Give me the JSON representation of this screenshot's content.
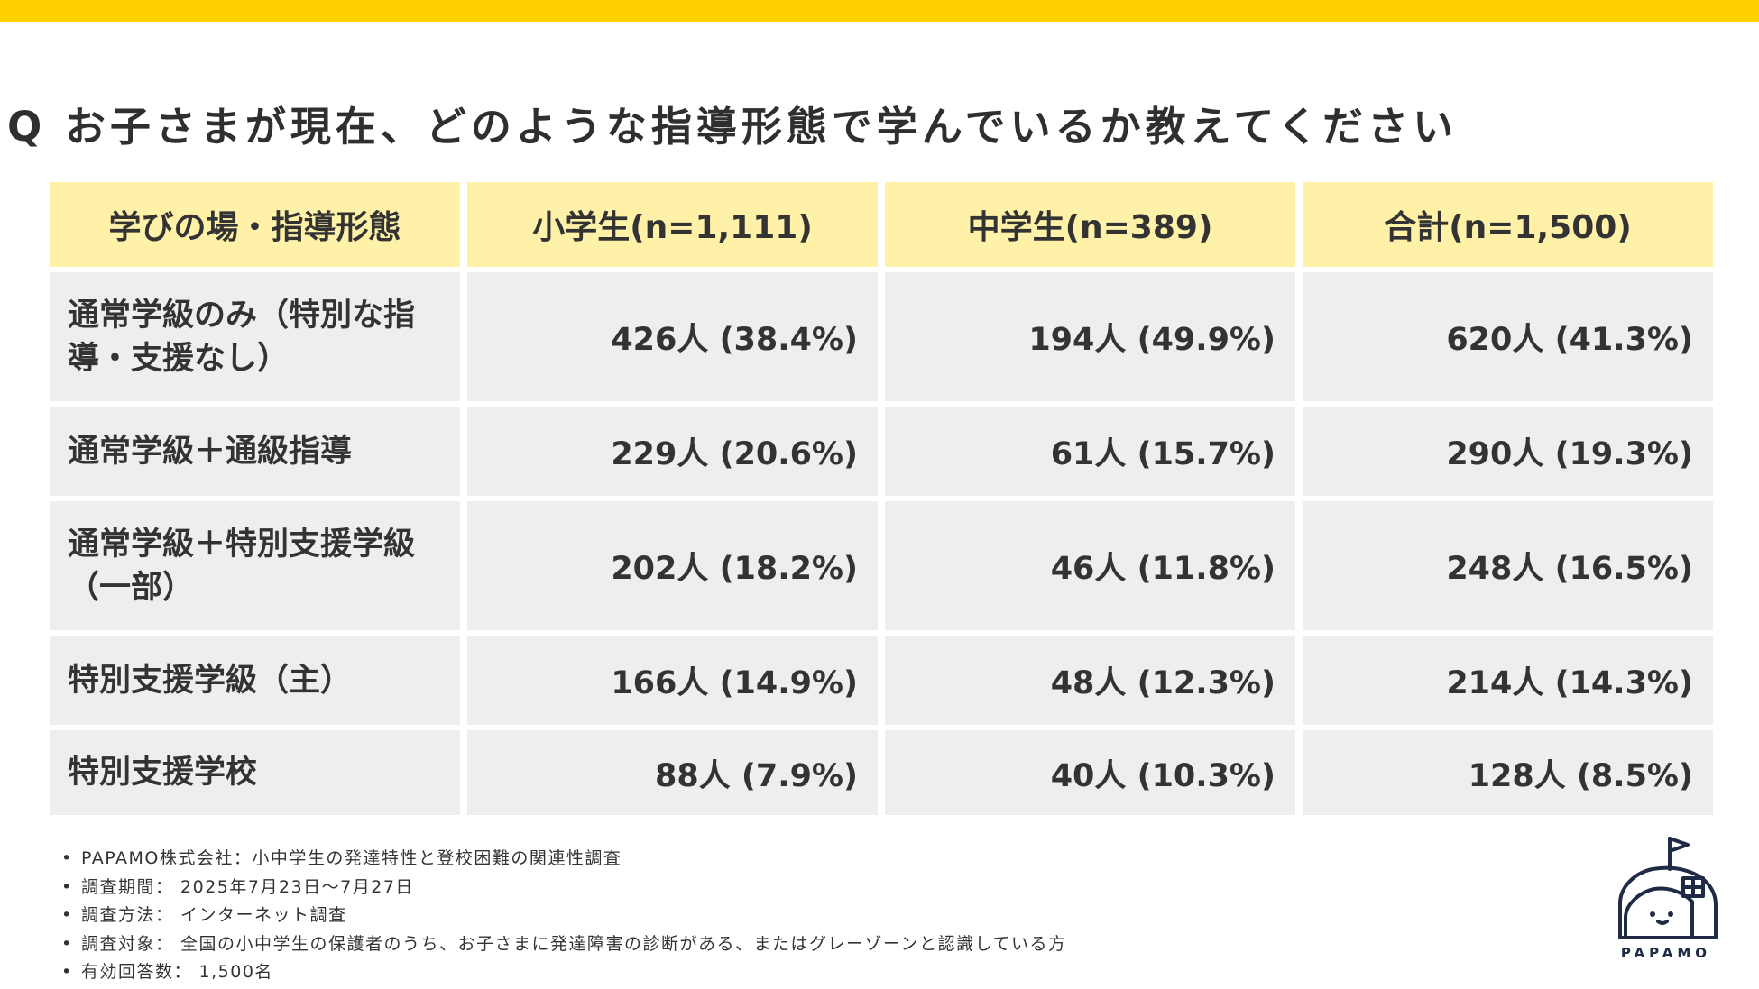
{
  "title": "Q お子さまが現在、どのような指導形態で学んでいるか教えてください",
  "colors": {
    "accent": "#FFD100",
    "header_bg": "#FFF2A8",
    "cell_bg": "#EEEEEE",
    "logo": "#1f2a44"
  },
  "table": {
    "headers": [
      "学びの場・指導形態",
      "小学生(n=1,111)",
      "中学生(n=389)",
      "合計(n=1,500)"
    ],
    "rows": [
      {
        "label": "通常学級のみ（特別な指導・支援なし）",
        "elementary": "426人 (38.4%)",
        "junior_high": "194人 (49.9%)",
        "total": "620人 (41.3%)"
      },
      {
        "label": "通常学級＋通級指導",
        "elementary": "229人 (20.6%)",
        "junior_high": "61人 (15.7%)",
        "total": "290人 (19.3%)"
      },
      {
        "label": "通常学級＋特別支援学級（一部）",
        "elementary": "202人 (18.2%)",
        "junior_high": "46人 (11.8%)",
        "total": "248人 (16.5%)"
      },
      {
        "label": "特別支援学級（主）",
        "elementary": "166人 (14.9%)",
        "junior_high": "48人 (12.3%)",
        "total": "214人 (14.3%)"
      },
      {
        "label": "特別支援学校",
        "elementary": "88人 (7.9%)",
        "junior_high": "40人 (10.3%)",
        "total": "128人 (8.5%)"
      }
    ]
  },
  "notes": [
    "PAPAMO株式会社：小中学生の発達特性と登校困難の関連性調査",
    "調査期間： 2025年7月23日～7月27日",
    "調査方法： インターネット調査",
    "調査対象： 全国の小中学生の保護者のうち、お子さまに発達障害の診断がある、またはグレーゾーンと認識している方",
    "有効回答数： 1,500名"
  ],
  "logo": {
    "text": "PAPAMO",
    "icon": "house-face-icon"
  }
}
